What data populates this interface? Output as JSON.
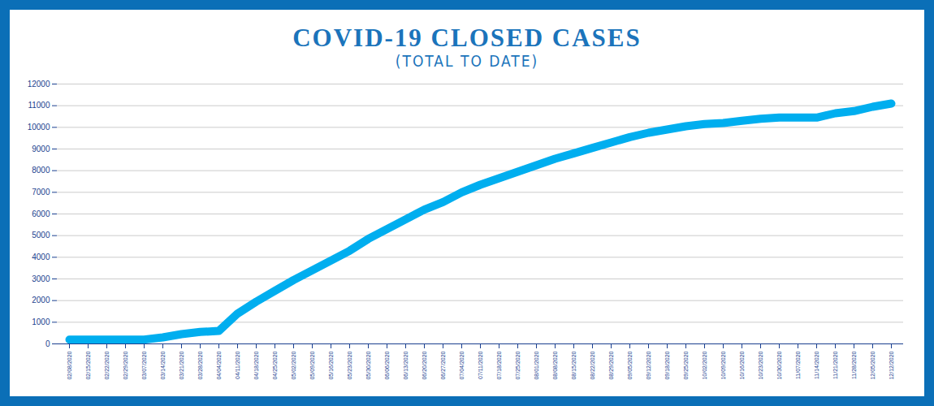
{
  "chart_data": {
    "type": "line",
    "title": "COVID-19 CLOSED CASES",
    "subtitle": "(TOTAL TO DATE)",
    "categories": [
      "02/08/2020",
      "02/15/2020",
      "02/22/2020",
      "02/29/2020",
      "03/07/2020",
      "03/14/2020",
      "03/21/2020",
      "03/28/2020",
      "04/04/2020",
      "04/11/2020",
      "04/18/2020",
      "04/25/2020",
      "05/02/2020",
      "05/09/2020",
      "05/16/2020",
      "05/23/2020",
      "05/30/2020",
      "06/06/2020",
      "06/13/2020",
      "06/20/2020",
      "06/27/2020",
      "07/04/2020",
      "07/11/2020",
      "07/18/2020",
      "07/25/2020",
      "08/01/2020",
      "08/08/2020",
      "08/15/2020",
      "08/22/2020",
      "08/29/2020",
      "09/05/2020",
      "09/12/2020",
      "09/18/2020",
      "09/25/2020",
      "10/02/2020",
      "10/09/2020",
      "10/16/2020",
      "10/23/2020",
      "10/30/2020",
      "11/07/2020",
      "11/14/2020",
      "11/21/2020",
      "11/28/2020",
      "12/05/2020",
      "12/12/2020"
    ],
    "values": [
      200,
      200,
      200,
      200,
      200,
      300,
      450,
      550,
      600,
      1400,
      1950,
      2450,
      2950,
      3400,
      3850,
      4300,
      4850,
      5300,
      5750,
      6200,
      6550,
      7000,
      7350,
      7650,
      7950,
      8250,
      8550,
      8800,
      9050,
      9300,
      9550,
      9750,
      9900,
      10050,
      10150,
      10200,
      10300,
      10400,
      10450,
      10450,
      10450,
      10650,
      10750,
      10950,
      11100
    ],
    "color": "#00aeef",
    "ylim": [
      0,
      12000
    ],
    "yticks": [
      0,
      1000,
      2000,
      3000,
      4000,
      5000,
      6000,
      7000,
      8000,
      9000,
      10000,
      11000,
      12000
    ],
    "grid": true
  }
}
